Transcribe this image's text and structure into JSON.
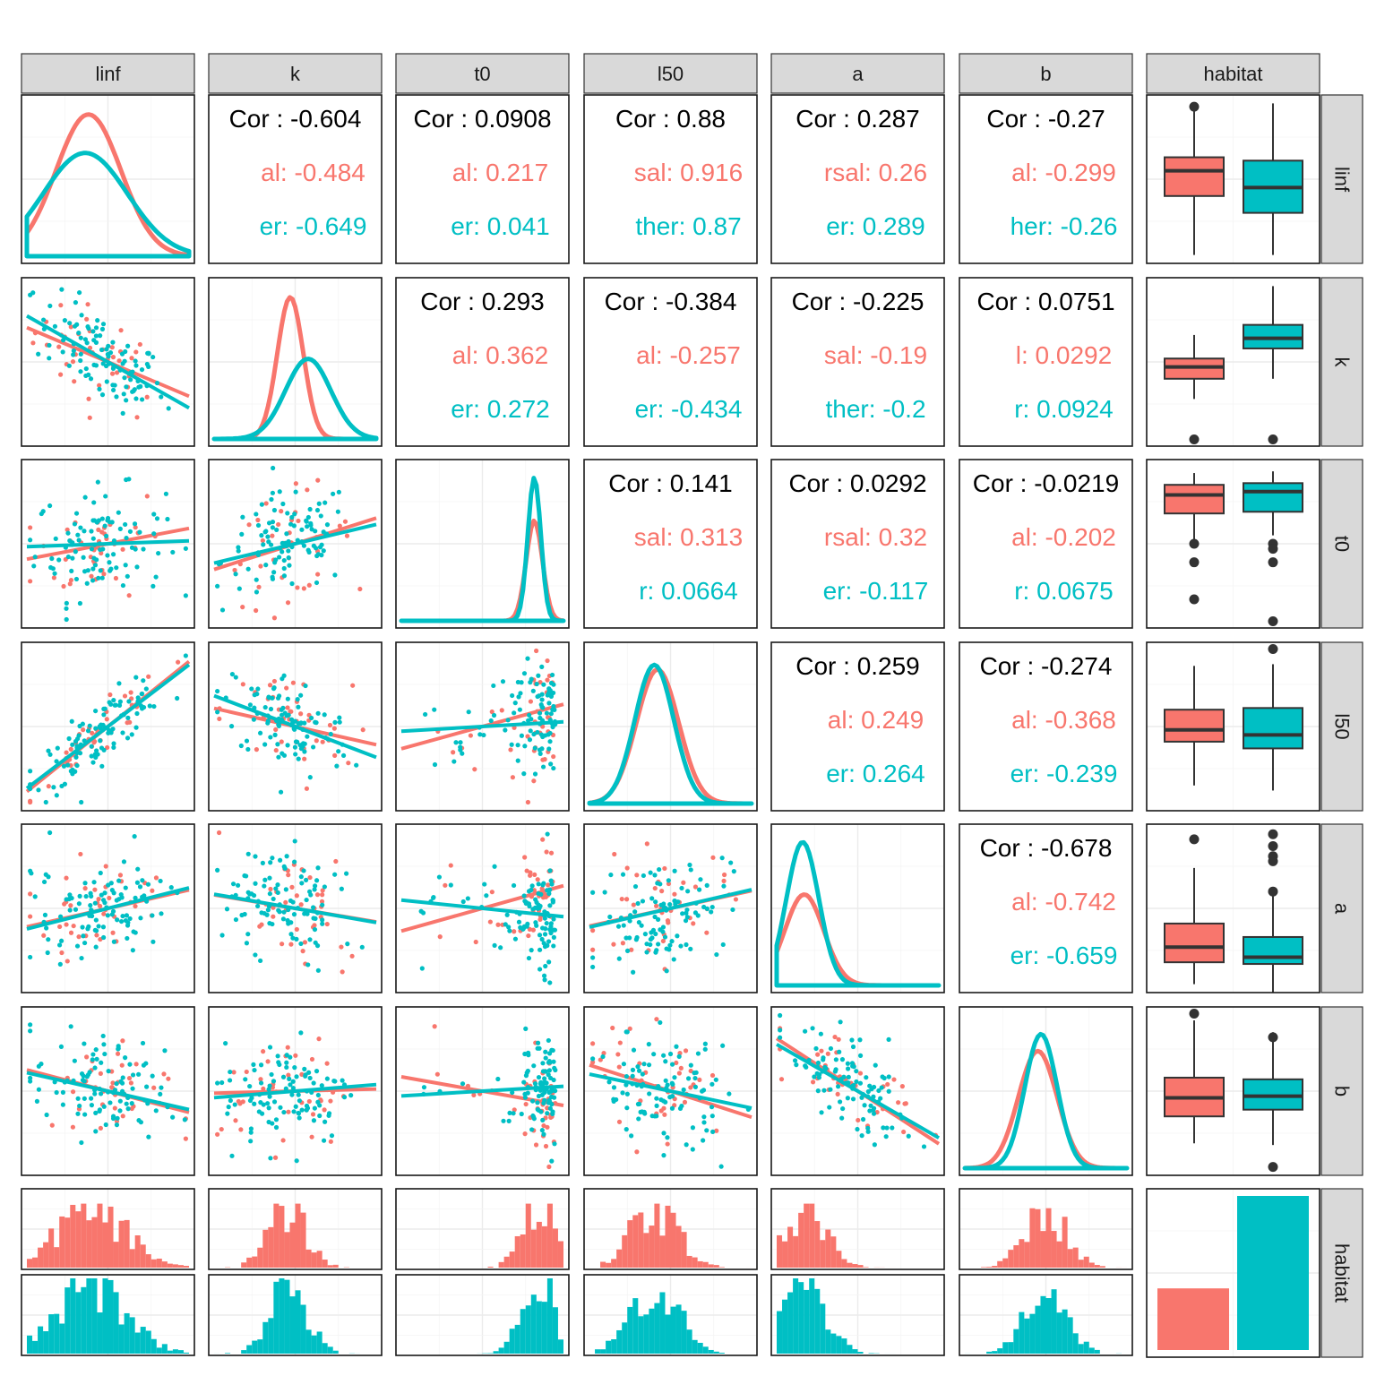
{
  "colors": {
    "seasonal": "#F8766D",
    "other": "#00BFC4",
    "box_line": "#333333"
  },
  "variables": [
    "linf",
    "k",
    "t0",
    "l50",
    "a",
    "b",
    "habitat"
  ],
  "chart_data": {
    "type": "scatter",
    "title": "",
    "description": "Pairwise scatterplot matrix (ggpairs) grouped by habitat",
    "groups": [
      "seasonal",
      "other"
    ],
    "correlations": [
      {
        "row": "linf",
        "col": "k",
        "overall": "Cor : -0.604",
        "seasonal": "al: -0.484",
        "other": "er: -0.649"
      },
      {
        "row": "linf",
        "col": "t0",
        "overall": "Cor : 0.0908",
        "seasonal": "al: 0.217",
        "other": "er: 0.041"
      },
      {
        "row": "linf",
        "col": "l50",
        "overall": "Cor : 0.88",
        "seasonal": "sal: 0.916",
        "other": "ther: 0.87"
      },
      {
        "row": "linf",
        "col": "a",
        "overall": "Cor : 0.287",
        "seasonal": "rsal: 0.26",
        "other": "er: 0.289"
      },
      {
        "row": "linf",
        "col": "b",
        "overall": "Cor : -0.27",
        "seasonal": "al: -0.299",
        "other": "her: -0.26"
      },
      {
        "row": "k",
        "col": "t0",
        "overall": "Cor : 0.293",
        "seasonal": "al: 0.362",
        "other": "er: 0.272"
      },
      {
        "row": "k",
        "col": "l50",
        "overall": "Cor : -0.384",
        "seasonal": "al: -0.257",
        "other": "er: -0.434"
      },
      {
        "row": "k",
        "col": "a",
        "overall": "Cor : -0.225",
        "seasonal": "sal: -0.19",
        "other": "ther: -0.2"
      },
      {
        "row": "k",
        "col": "b",
        "overall": "Cor : 0.0751",
        "seasonal": "l: 0.0292",
        "other": "r: 0.0924"
      },
      {
        "row": "t0",
        "col": "l50",
        "overall": "Cor : 0.141",
        "seasonal": "sal: 0.313",
        "other": "r: 0.0664"
      },
      {
        "row": "t0",
        "col": "a",
        "overall": "Cor : 0.0292",
        "seasonal": "rsal: 0.32",
        "other": "er: -0.117"
      },
      {
        "row": "t0",
        "col": "b",
        "overall": "Cor : -0.0219",
        "seasonal": "al: -0.202",
        "other": "r: 0.0675"
      },
      {
        "row": "l50",
        "col": "a",
        "overall": "Cor : 0.259",
        "seasonal": "al: 0.249",
        "other": "er: 0.264"
      },
      {
        "row": "l50",
        "col": "b",
        "overall": "Cor : -0.274",
        "seasonal": "al: -0.368",
        "other": "er: -0.239"
      },
      {
        "row": "a",
        "col": "b",
        "overall": "Cor : -0.678",
        "seasonal": "al: -0.742",
        "other": "er: -0.659"
      }
    ],
    "habitat_counts": {
      "seasonal": 40,
      "other": 100
    }
  }
}
